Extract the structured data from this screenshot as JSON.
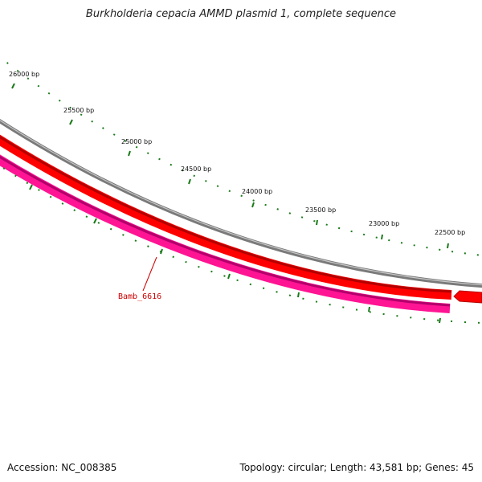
{
  "map": {
    "title": "Burkholderia cepacia AMMD plasmid 1, complete sequence",
    "accession": "Accession: NC_008385",
    "summary": "Topology: circular; Length: 43,581 bp; Genes: 45",
    "scale_labels": [
      "26000 bp",
      "25500 bp",
      "25000 bp",
      "24500 bp",
      "24000 bp",
      "23500 bp",
      "23000 bp",
      "22500 bp"
    ],
    "gene_label": "Bamb_6616",
    "colors": {
      "backbone": "#808080",
      "forward_gene": "#ff0000",
      "reverse_gene": "#ff1493",
      "tick": "#1a7a1a",
      "label": "#cc0000"
    }
  }
}
